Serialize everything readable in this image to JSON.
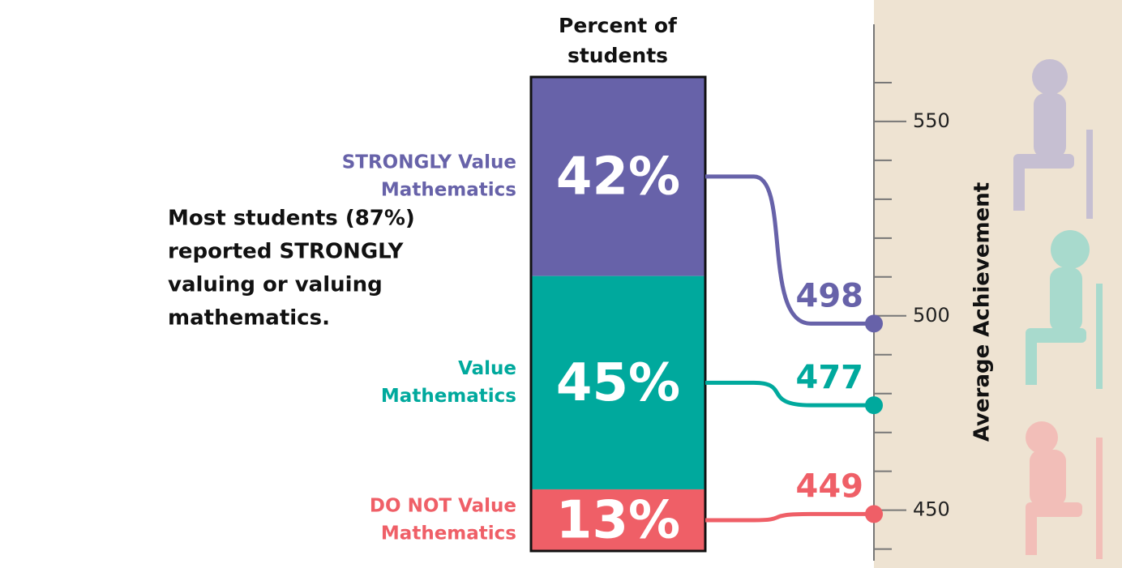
{
  "chart_data": {
    "type": "stacked-bar-link",
    "note": [
      "Most students (87%)",
      "reported STRONGLY",
      "valuing or valuing",
      "mathematics."
    ],
    "bar_title": [
      "Percent of",
      "students"
    ],
    "y_axis_label": "Average Achievement",
    "ylim": [
      437,
      575
    ],
    "yticks": [
      450,
      500,
      550
    ],
    "minor_yticks": [
      440,
      460,
      470,
      480,
      490,
      510,
      520,
      530,
      540,
      560
    ],
    "series": [
      {
        "name": [
          "STRONGLY Value",
          "Mathematics"
        ],
        "color": "#6762a9",
        "value": 42,
        "value_label": "42%",
        "achievement": 498
      },
      {
        "name": [
          "Value",
          "Mathematics"
        ],
        "color": "#00a99d",
        "value": 45,
        "value_label": "45%",
        "achievement": 477
      },
      {
        "name": [
          "DO NOT Value",
          "Mathematics"
        ],
        "color": "#ef5f67",
        "value": 13,
        "value_label": "13%",
        "achievement": 449
      }
    ]
  }
}
